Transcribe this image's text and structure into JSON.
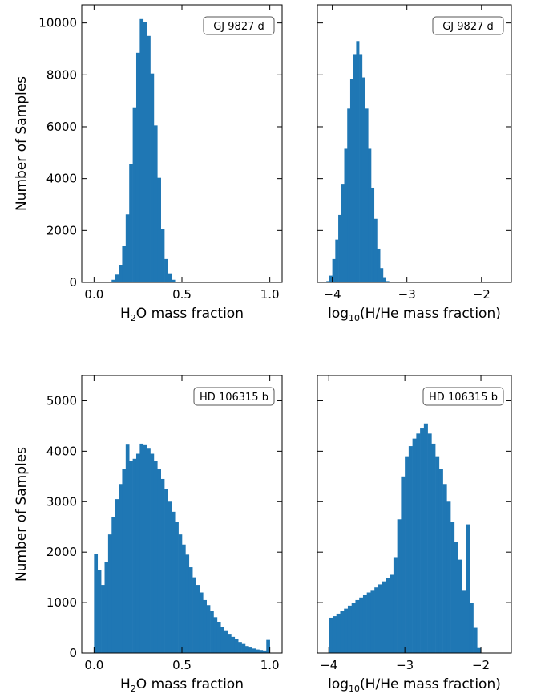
{
  "chart_data": [
    {
      "type": "bar",
      "panel_label": "GJ 9827 d",
      "xlabel": {
        "pre": "H",
        "sub": "2",
        "post": "O mass fraction"
      },
      "ylabel": "Number of Samples",
      "xlim": [
        -0.07,
        1.07
      ],
      "ylim": [
        0,
        10700
      ],
      "xticks": [
        0.0,
        0.5,
        1.0
      ],
      "xtick_labels": [
        "0.0",
        "0.5",
        "1.0"
      ],
      "yticks": [
        0,
        2000,
        4000,
        6000,
        8000,
        10000
      ],
      "ytick_labels": [
        "0",
        "2000",
        "4000",
        "6000",
        "8000",
        "10000"
      ],
      "bin_start": 0.0,
      "bin_width": 0.02,
      "values": [
        0,
        0,
        0,
        0,
        30,
        100,
        300,
        680,
        1420,
        2620,
        4550,
        6750,
        8850,
        10150,
        10050,
        9500,
        8050,
        6050,
        4030,
        2070,
        900,
        350,
        100,
        30,
        0,
        0,
        0,
        0,
        0,
        0,
        0,
        0,
        0,
        0,
        0,
        0,
        0,
        0,
        0,
        0,
        0,
        0,
        0,
        0,
        0,
        0,
        0,
        0,
        0,
        0
      ]
    },
    {
      "type": "bar",
      "panel_label": "GJ 9827 d",
      "xlabel": {
        "pre": "log",
        "sub": "10",
        "post": "(H/He mass fraction)"
      },
      "ylabel": "",
      "xlim": [
        -4.2,
        -1.6
      ],
      "ylim": [
        0,
        10700
      ],
      "xticks": [
        -4,
        -3,
        -2
      ],
      "xtick_labels": [
        "−4",
        "−3",
        "−2"
      ],
      "yticks": [
        0,
        2000,
        4000,
        6000,
        8000,
        10000
      ],
      "ytick_labels": [
        "",
        "",
        "",
        "",
        "",
        ""
      ],
      "bin_start": -4.08,
      "bin_width": 0.04,
      "values": [
        50,
        260,
        900,
        1650,
        2600,
        3800,
        5150,
        6700,
        7850,
        8800,
        9300,
        8800,
        7900,
        6700,
        5150,
        3650,
        2450,
        1300,
        550,
        200,
        50
      ]
    },
    {
      "type": "bar",
      "panel_label": "HD 106315 b",
      "xlabel": {
        "pre": "H",
        "sub": "2",
        "post": "O mass fraction"
      },
      "ylabel": "Number of Samples",
      "xlim": [
        -0.07,
        1.07
      ],
      "ylim": [
        0,
        5500
      ],
      "xticks": [
        0.0,
        0.5,
        1.0
      ],
      "xtick_labels": [
        "0.0",
        "0.5",
        "1.0"
      ],
      "yticks": [
        0,
        1000,
        2000,
        3000,
        4000,
        5000
      ],
      "ytick_labels": [
        "0",
        "1000",
        "2000",
        "3000",
        "4000",
        "5000"
      ],
      "bin_start": 0.0,
      "bin_width": 0.02,
      "values": [
        1970,
        1650,
        1350,
        1800,
        2350,
        2700,
        3050,
        3350,
        3650,
        4130,
        3800,
        3850,
        3950,
        4150,
        4120,
        4050,
        3950,
        3800,
        3650,
        3450,
        3250,
        3000,
        2800,
        2600,
        2350,
        2150,
        1950,
        1700,
        1500,
        1350,
        1200,
        1050,
        950,
        830,
        710,
        620,
        520,
        450,
        380,
        320,
        270,
        220,
        180,
        140,
        110,
        90,
        70,
        60,
        50,
        260
      ]
    },
    {
      "type": "bar",
      "panel_label": "HD 106315 b",
      "xlabel": {
        "pre": "log",
        "sub": "10",
        "post": "(H/He mass fraction)"
      },
      "ylabel": "",
      "xlim": [
        -4.15,
        -1.6
      ],
      "ylim": [
        0,
        5500
      ],
      "xticks": [
        -4,
        -3,
        -2
      ],
      "xtick_labels": [
        "−4",
        "−3",
        "−2"
      ],
      "yticks": [
        0,
        1000,
        2000,
        3000,
        4000,
        5000
      ],
      "ytick_labels": [
        "",
        "",
        "",
        "",
        "",
        ""
      ],
      "bin_start": -4.0,
      "bin_width": 0.05,
      "values": [
        700,
        730,
        780,
        830,
        880,
        940,
        1000,
        1050,
        1100,
        1150,
        1200,
        1250,
        1300,
        1360,
        1420,
        1480,
        1550,
        1900,
        2650,
        3500,
        3900,
        4100,
        4250,
        4350,
        4450,
        4550,
        4350,
        4150,
        3900,
        3650,
        3350,
        3000,
        2600,
        2200,
        1850,
        1250,
        2550,
        1000,
        500,
        100
      ]
    }
  ]
}
